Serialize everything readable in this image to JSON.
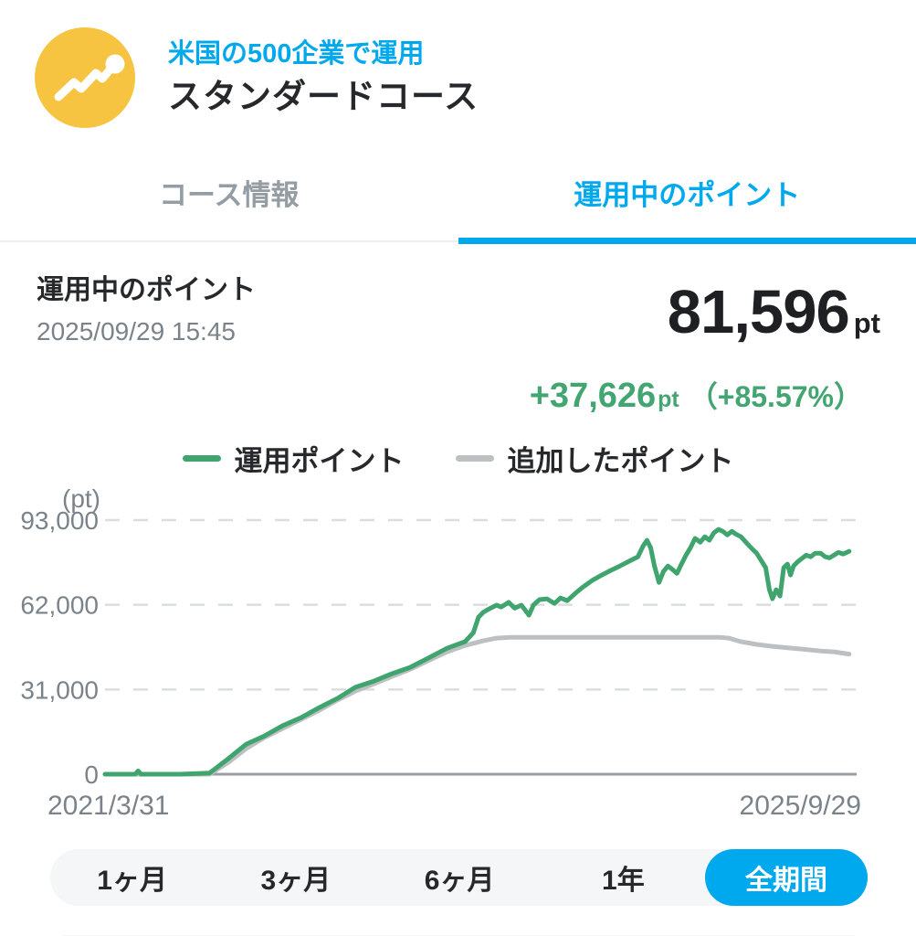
{
  "header": {
    "icon": "trend-line-icon",
    "subtitle": "米国の500企業で運用",
    "title": "スタンダードコース"
  },
  "tabs": [
    {
      "label": "コース情報",
      "active": false
    },
    {
      "label": "運用中のポイント",
      "active": true
    }
  ],
  "summary": {
    "label": "運用中のポイント",
    "timestamp": "2025/09/29 15:45",
    "value": "81,596",
    "unit": "pt",
    "gain": "+37,626",
    "gain_unit": "pt",
    "gain_percent": "（+85.57%）"
  },
  "colors": {
    "accent_blue": "#00A9EE",
    "brand_yellow": "#F6C441",
    "gain_green": "#43A571",
    "line_green": "#3FA46E",
    "line_gray": "#BDC0C2",
    "axis_gray": "#999EA2",
    "grid_gray": "#DBDDDF"
  },
  "chart_data": {
    "type": "line",
    "unit_label": "(pt)",
    "x_start_label": "2021/3/31",
    "x_end_label": "2025/9/29",
    "ylim": [
      0,
      93000
    ],
    "grid": "dashed-horizontal",
    "legend_position": "top-center",
    "yticks": [
      {
        "value": 0,
        "label": "0"
      },
      {
        "value": 31000,
        "label": "31,000"
      },
      {
        "value": 62000,
        "label": "62,000"
      },
      {
        "value": 93000,
        "label": "93,000"
      }
    ],
    "legend": [
      {
        "label": "運用ポイント",
        "color": "#3FA46E"
      },
      {
        "label": "追加したポイント",
        "color": "#BDC0C2"
      }
    ],
    "series": [
      {
        "name": "追加したポイント",
        "color": "#BDC0C2",
        "points": [
          [
            0.0,
            0
          ],
          [
            0.139,
            0
          ],
          [
            0.164,
            4300
          ],
          [
            0.188,
            9400
          ],
          [
            0.212,
            13400
          ],
          [
            0.236,
            16700
          ],
          [
            0.261,
            20100
          ],
          [
            0.285,
            23400
          ],
          [
            0.309,
            27100
          ],
          [
            0.333,
            30400
          ],
          [
            0.358,
            33100
          ],
          [
            0.382,
            35800
          ],
          [
            0.406,
            38400
          ],
          [
            0.43,
            41500
          ],
          [
            0.455,
            44800
          ],
          [
            0.479,
            47100
          ],
          [
            0.503,
            48800
          ],
          [
            0.521,
            49800
          ],
          [
            0.539,
            50100
          ],
          [
            0.818,
            50100
          ],
          [
            0.83,
            49800
          ],
          [
            0.846,
            48500
          ],
          [
            0.867,
            47500
          ],
          [
            0.888,
            46800
          ],
          [
            0.915,
            46100
          ],
          [
            0.927,
            45800
          ],
          [
            0.952,
            45100
          ],
          [
            0.97,
            44800
          ],
          [
            0.99,
            43970
          ]
        ]
      },
      {
        "name": "運用ポイント",
        "color": "#3FA46E",
        "points": [
          [
            0.0,
            0
          ],
          [
            0.04,
            0
          ],
          [
            0.044,
            1200
          ],
          [
            0.048,
            0
          ],
          [
            0.1,
            0
          ],
          [
            0.139,
            400
          ],
          [
            0.164,
            5700
          ],
          [
            0.188,
            11000
          ],
          [
            0.212,
            14000
          ],
          [
            0.236,
            17700
          ],
          [
            0.261,
            20700
          ],
          [
            0.285,
            24400
          ],
          [
            0.309,
            27700
          ],
          [
            0.333,
            31800
          ],
          [
            0.358,
            34100
          ],
          [
            0.382,
            36800
          ],
          [
            0.406,
            39100
          ],
          [
            0.43,
            42500
          ],
          [
            0.455,
            46100
          ],
          [
            0.479,
            48500
          ],
          [
            0.49,
            51800
          ],
          [
            0.497,
            57500
          ],
          [
            0.503,
            59200
          ],
          [
            0.509,
            60200
          ],
          [
            0.521,
            61900
          ],
          [
            0.527,
            61200
          ],
          [
            0.537,
            62900
          ],
          [
            0.545,
            60800
          ],
          [
            0.554,
            61900
          ],
          [
            0.564,
            58200
          ],
          [
            0.57,
            61900
          ],
          [
            0.578,
            63900
          ],
          [
            0.588,
            64200
          ],
          [
            0.598,
            62500
          ],
          [
            0.606,
            64500
          ],
          [
            0.615,
            63500
          ],
          [
            0.627,
            66500
          ],
          [
            0.636,
            68500
          ],
          [
            0.648,
            70900
          ],
          [
            0.661,
            72900
          ],
          [
            0.673,
            74600
          ],
          [
            0.685,
            76200
          ],
          [
            0.697,
            77900
          ],
          [
            0.709,
            79600
          ],
          [
            0.716,
            83600
          ],
          [
            0.721,
            85600
          ],
          [
            0.726,
            82900
          ],
          [
            0.731,
            76200
          ],
          [
            0.737,
            70200
          ],
          [
            0.743,
            74200
          ],
          [
            0.749,
            76200
          ],
          [
            0.755,
            74900
          ],
          [
            0.761,
            73500
          ],
          [
            0.767,
            76900
          ],
          [
            0.773,
            80200
          ],
          [
            0.779,
            82900
          ],
          [
            0.785,
            86300
          ],
          [
            0.792,
            84900
          ],
          [
            0.798,
            86900
          ],
          [
            0.804,
            85600
          ],
          [
            0.81,
            88300
          ],
          [
            0.816,
            89600
          ],
          [
            0.822,
            88900
          ],
          [
            0.828,
            87600
          ],
          [
            0.834,
            88900
          ],
          [
            0.839,
            87900
          ],
          [
            0.846,
            86900
          ],
          [
            0.855,
            84200
          ],
          [
            0.862,
            82200
          ],
          [
            0.867,
            80900
          ],
          [
            0.873,
            78200
          ],
          [
            0.879,
            75600
          ],
          [
            0.884,
            67500
          ],
          [
            0.888,
            64200
          ],
          [
            0.893,
            67500
          ],
          [
            0.898,
            65200
          ],
          [
            0.903,
            75600
          ],
          [
            0.908,
            76900
          ],
          [
            0.912,
            72900
          ],
          [
            0.916,
            76200
          ],
          [
            0.921,
            77600
          ],
          [
            0.927,
            78900
          ],
          [
            0.933,
            80200
          ],
          [
            0.939,
            79600
          ],
          [
            0.945,
            80900
          ],
          [
            0.952,
            80900
          ],
          [
            0.958,
            79600
          ],
          [
            0.964,
            79200
          ],
          [
            0.97,
            80200
          ],
          [
            0.976,
            81200
          ],
          [
            0.982,
            80600
          ],
          [
            0.987,
            81200
          ],
          [
            0.99,
            81596
          ]
        ]
      }
    ]
  },
  "period_selector": {
    "options": [
      "1ヶ月",
      "3ヶ月",
      "6ヶ月",
      "1年",
      "全期間"
    ],
    "selected": "全期間"
  }
}
